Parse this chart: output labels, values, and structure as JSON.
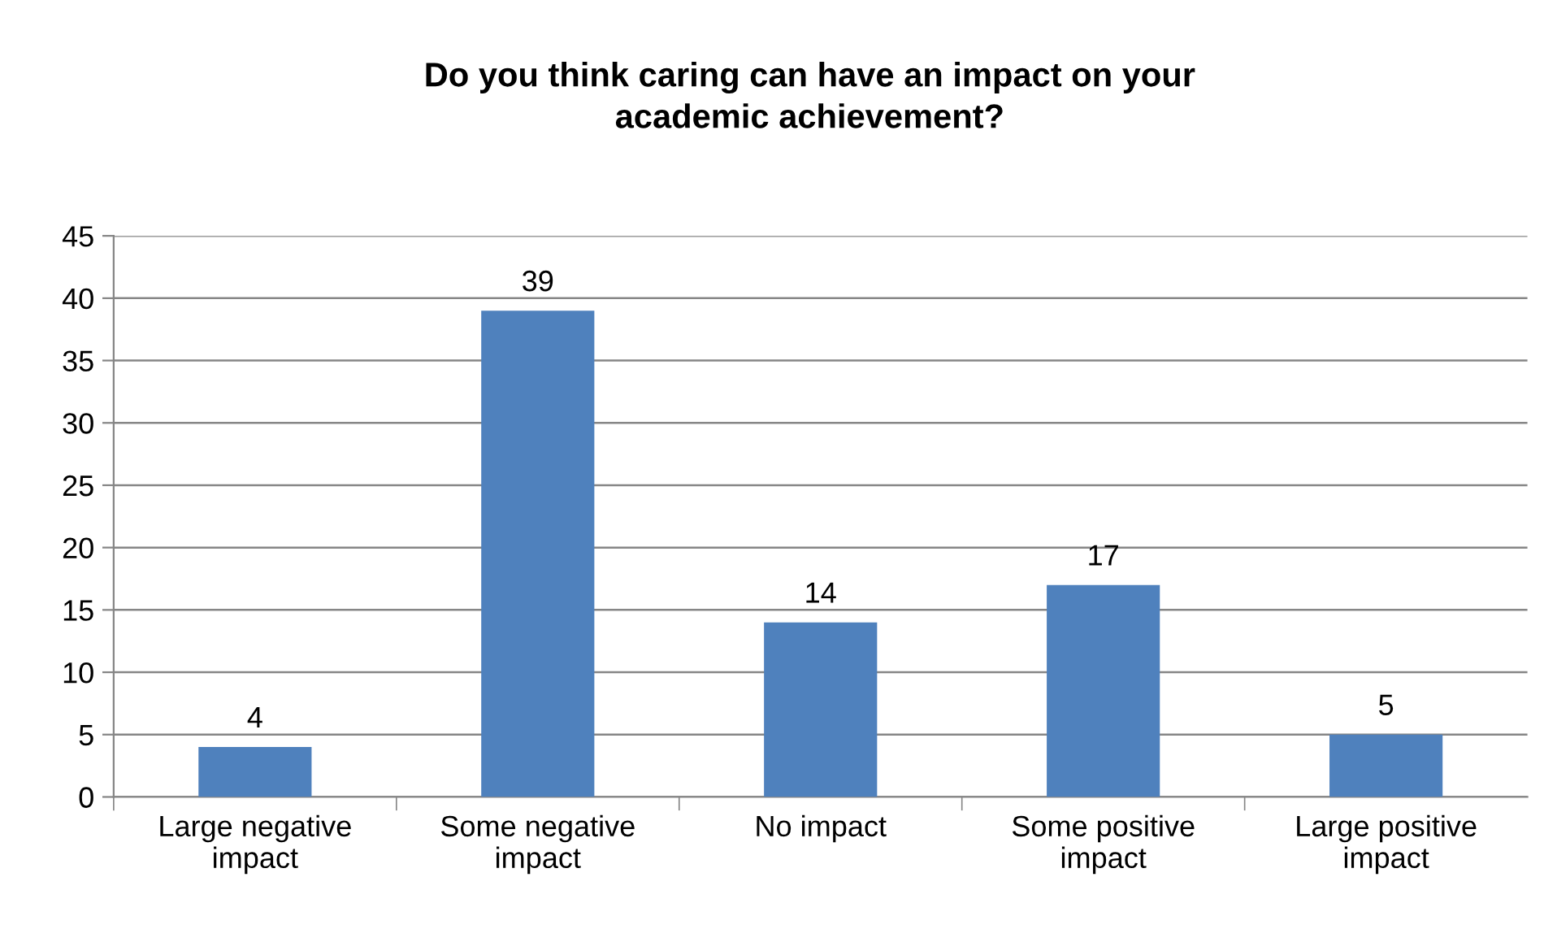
{
  "chart_data": {
    "type": "bar",
    "title": "Do you think caring can have an impact on your\nacademic achievement?",
    "categories": [
      "Large negative\nimpact",
      "Some negative\nimpact",
      "No impact",
      "Some positive\nimpact",
      "Large positive\nimpact"
    ],
    "values": [
      4,
      39,
      14,
      17,
      5
    ],
    "color": "#4f81bd",
    "ylim": [
      0,
      45
    ],
    "yticks": [
      0,
      5,
      10,
      15,
      20,
      25,
      30,
      35,
      40,
      45
    ],
    "grid": "y",
    "data_labels": true,
    "legend": false
  }
}
